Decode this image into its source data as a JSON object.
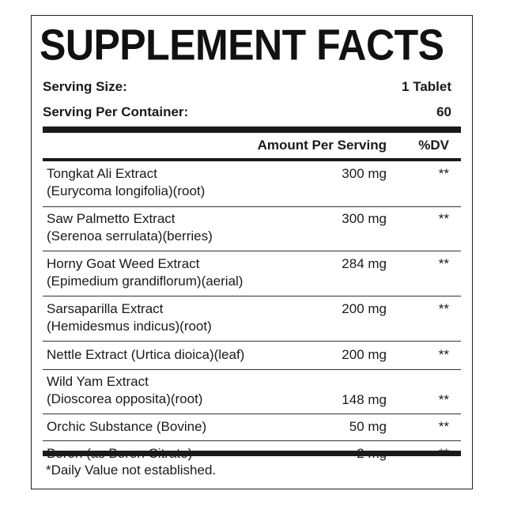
{
  "title": "SUPPLEMENT FACTS",
  "serving_size": {
    "label": "Serving Size:",
    "value": "1 Tablet"
  },
  "servings_per_container": {
    "label": "Serving Per Container:",
    "value": "60"
  },
  "columns": {
    "amount": "Amount Per Serving",
    "dv": "%DV"
  },
  "ingredients": [
    {
      "line1": "Tongkat Ali Extract",
      "line2": "(Eurycoma longifolia)(root)",
      "amount": "300 mg",
      "dv": "**"
    },
    {
      "line1": "Saw Palmetto Extract",
      "line2": "(Serenoa serrulata)(berries)",
      "amount": "300 mg",
      "dv": "**"
    },
    {
      "line1": "Horny Goat Weed Extract",
      "line2": "(Epimedium grandiflorum)(aerial)",
      "amount": "284 mg",
      "dv": "**"
    },
    {
      "line1": "Sarsaparilla Extract",
      "line2": "(Hemidesmus indicus)(root)",
      "amount": "200 mg",
      "dv": "**"
    },
    {
      "line1": "Nettle Extract (Urtica dioica)(leaf)",
      "line2": "",
      "amount": "200 mg",
      "dv": "**"
    },
    {
      "line1": "Wild Yam Extract",
      "line2": "(Dioscorea opposita)(root)",
      "amount": "148 mg",
      "dv": "**"
    },
    {
      "line1": "Orchic Substance (Bovine)",
      "line2": "",
      "amount": "50 mg",
      "dv": "**"
    },
    {
      "line1": "Boron (as Boron Citrate)",
      "line2": "",
      "amount": "2 mg",
      "dv": "**"
    }
  ],
  "footnote": "*Daily Value not established.",
  "colors": {
    "ink": "#1a1a1a",
    "background": "#ffffff"
  }
}
